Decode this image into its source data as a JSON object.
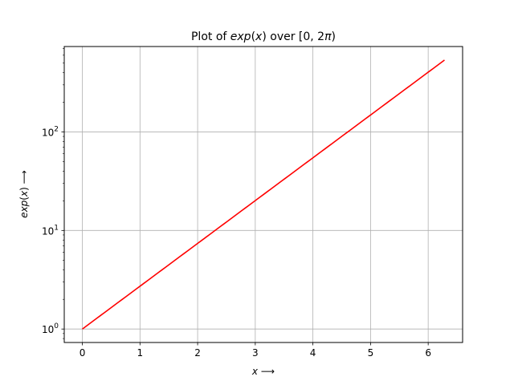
{
  "chart_data": {
    "type": "line",
    "title": {
      "prefix": "Plot of ",
      "function": "exp",
      "paren_open": "(",
      "variable": "x",
      "paren_close": ")",
      "middle": " over [0, 2",
      "pi": "π",
      "suffix": ")"
    },
    "xlabel": {
      "variable": "x",
      "arrow": " ⟶"
    },
    "ylabel": {
      "function": "exp",
      "paren_open": "(",
      "variable": "x",
      "paren_close": ")",
      "arrow": " ⟶"
    },
    "x_ticks": [
      {
        "value": 0,
        "label": "0"
      },
      {
        "value": 1,
        "label": "1"
      },
      {
        "value": 2,
        "label": "2"
      },
      {
        "value": 3,
        "label": "3"
      },
      {
        "value": 4,
        "label": "4"
      },
      {
        "value": 5,
        "label": "5"
      },
      {
        "value": 6,
        "label": "6"
      }
    ],
    "y_ticks": [
      {
        "value": 1,
        "base": "10",
        "exp": "0"
      },
      {
        "value": 10,
        "base": "10",
        "exp": "1"
      },
      {
        "value": 100,
        "base": "10",
        "exp": "2"
      }
    ],
    "y_scale": "log",
    "xlim": [
      -0.314,
      6.597
    ],
    "ylim": [
      0.73,
      735
    ],
    "grid": true,
    "series": [
      {
        "function": "exp(x)",
        "x_range": [
          0,
          6.2832
        ],
        "color": "#ff0000"
      }
    ]
  }
}
